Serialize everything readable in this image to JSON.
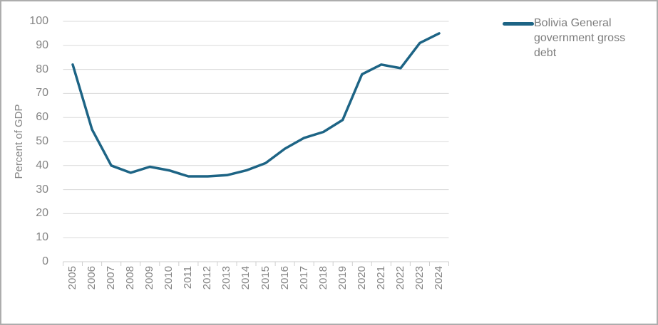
{
  "legend": {
    "label": "Bolivia General government gross debt"
  },
  "chart_data": {
    "type": "line",
    "title": "",
    "xlabel": "",
    "ylabel": "Percent of GDP",
    "categories": [
      "2005",
      "2006",
      "2007",
      "2008",
      "2009",
      "2010",
      "2011",
      "2012",
      "2013",
      "2014",
      "2015",
      "2016",
      "2017",
      "2018",
      "2019",
      "2020",
      "2021",
      "2022",
      "2023",
      "2024"
    ],
    "series": [
      {
        "name": "Bolivia General government gross debt",
        "values": [
          82,
          55,
          40,
          37,
          39.5,
          38,
          35.5,
          35.5,
          36,
          38,
          41,
          47,
          51.5,
          54,
          59,
          78,
          82,
          80.5,
          91,
          95
        ]
      }
    ],
    "ylim": [
      0,
      100
    ],
    "ytick_step": 10,
    "grid": "horizontal",
    "legend_position": "top-right",
    "colors": {
      "line": "#1d6485",
      "grid": "#d9d9d9",
      "axis": "#cfcfcf",
      "text": "#848484",
      "frame_border": "#adadad"
    }
  }
}
